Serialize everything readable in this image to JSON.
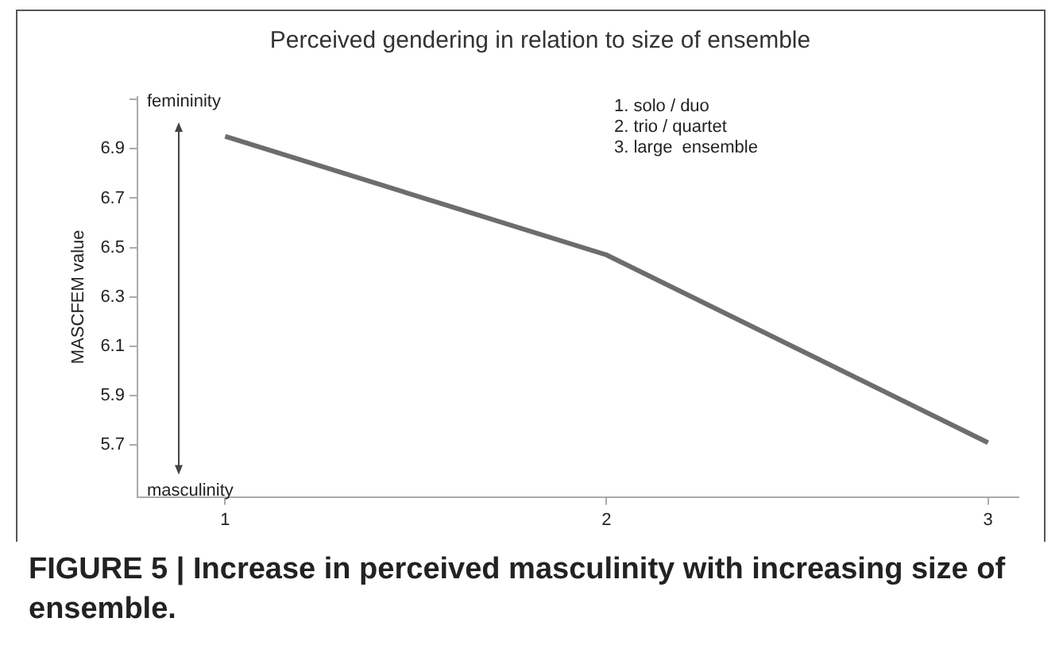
{
  "chart_data": {
    "type": "line",
    "title": "Perceived gendering in relation to size of ensemble",
    "ylabel": "MASCFEM value",
    "x": [
      1,
      2,
      3
    ],
    "series": [
      {
        "color": "#6d6d6d",
        "values": [
          6.95,
          6.47,
          5.71
        ]
      }
    ],
    "xlim": [
      0.77,
      3.08
    ],
    "xticks": [
      1,
      2,
      3
    ],
    "ylim": [
      5.49,
      7.11
    ],
    "yticks": [
      5.7,
      5.9,
      6.1,
      6.3,
      6.5,
      6.7,
      6.9,
      {
        "value": 7.1,
        "label": null
      }
    ],
    "annotations": [
      "femininity",
      "masculinity",
      "1. solo / duo",
      "2. trio / quartet",
      "3. large  ensemble",
      "FIGURE 5 | Increase in perceived masculinity with increasing size of ensemble."
    ]
  }
}
